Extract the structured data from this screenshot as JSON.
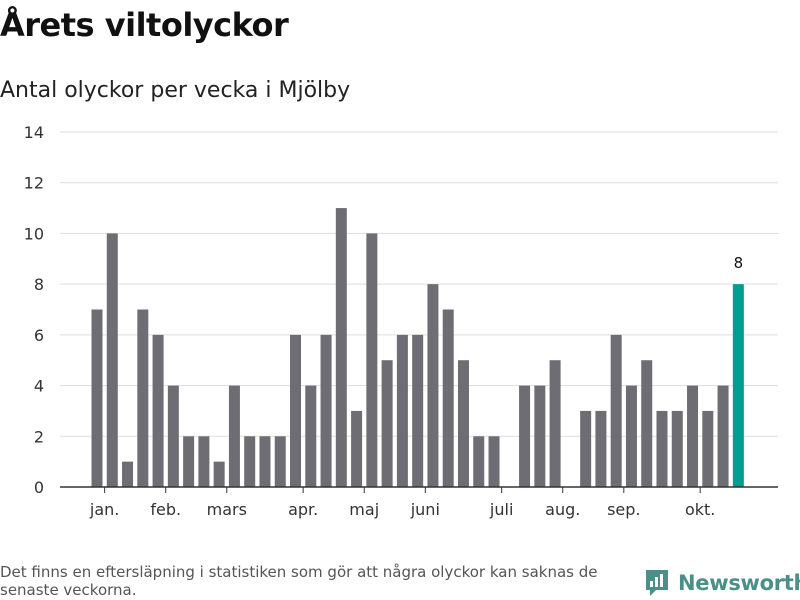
{
  "title": "Årets viltolyckor",
  "subtitle": "Antal olyckor per vecka i Mjölby",
  "footnote": "Det finns en eftersläpning i statistiken som gör att några olyckor kan saknas de senaste veckorna.",
  "brand": {
    "name": "Newsworthy",
    "color": "#4a8f88"
  },
  "colors": {
    "bar": "#6e6d73",
    "highlight": "#009e91",
    "grid": "#dddddd",
    "axis": "#333333"
  },
  "chart_data": {
    "type": "bar",
    "title": "Antal olyckor per vecka i Mjölby",
    "xlabel": "",
    "ylabel": "",
    "ylim": [
      0,
      14
    ],
    "yticks": [
      0,
      2,
      4,
      6,
      8,
      10,
      12,
      14
    ],
    "grid": true,
    "weeks": [
      1,
      2,
      3,
      4,
      5,
      6,
      7,
      8,
      9,
      10,
      11,
      12,
      13,
      14,
      15,
      16,
      17,
      18,
      19,
      20,
      21,
      22,
      23,
      24,
      25,
      26,
      27,
      28,
      29,
      30,
      31,
      32,
      33,
      34,
      35,
      36,
      37,
      38,
      39,
      40,
      41,
      42,
      43
    ],
    "values": [
      7,
      10,
      1,
      7,
      6,
      4,
      2,
      2,
      1,
      4,
      2,
      2,
      2,
      6,
      4,
      6,
      11,
      3,
      10,
      5,
      6,
      6,
      8,
      7,
      5,
      2,
      2,
      0,
      4,
      4,
      5,
      0,
      3,
      3,
      6,
      4,
      5,
      3,
      3,
      4,
      3,
      4,
      8
    ],
    "highlight_index": 42,
    "data_labels": [
      {
        "index": 42,
        "text": "8"
      }
    ],
    "month_labels": [
      {
        "label": "jan.",
        "week": 1.5
      },
      {
        "label": "feb.",
        "week": 5.5
      },
      {
        "label": "mars",
        "week": 9.5
      },
      {
        "label": "apr.",
        "week": 14.5
      },
      {
        "label": "maj",
        "week": 18.5
      },
      {
        "label": "juni",
        "week": 22.5
      },
      {
        "label": "juli",
        "week": 27.5
      },
      {
        "label": "aug.",
        "week": 31.5
      },
      {
        "label": "sep.",
        "week": 35.5
      },
      {
        "label": "okt.",
        "week": 40.5
      }
    ]
  }
}
